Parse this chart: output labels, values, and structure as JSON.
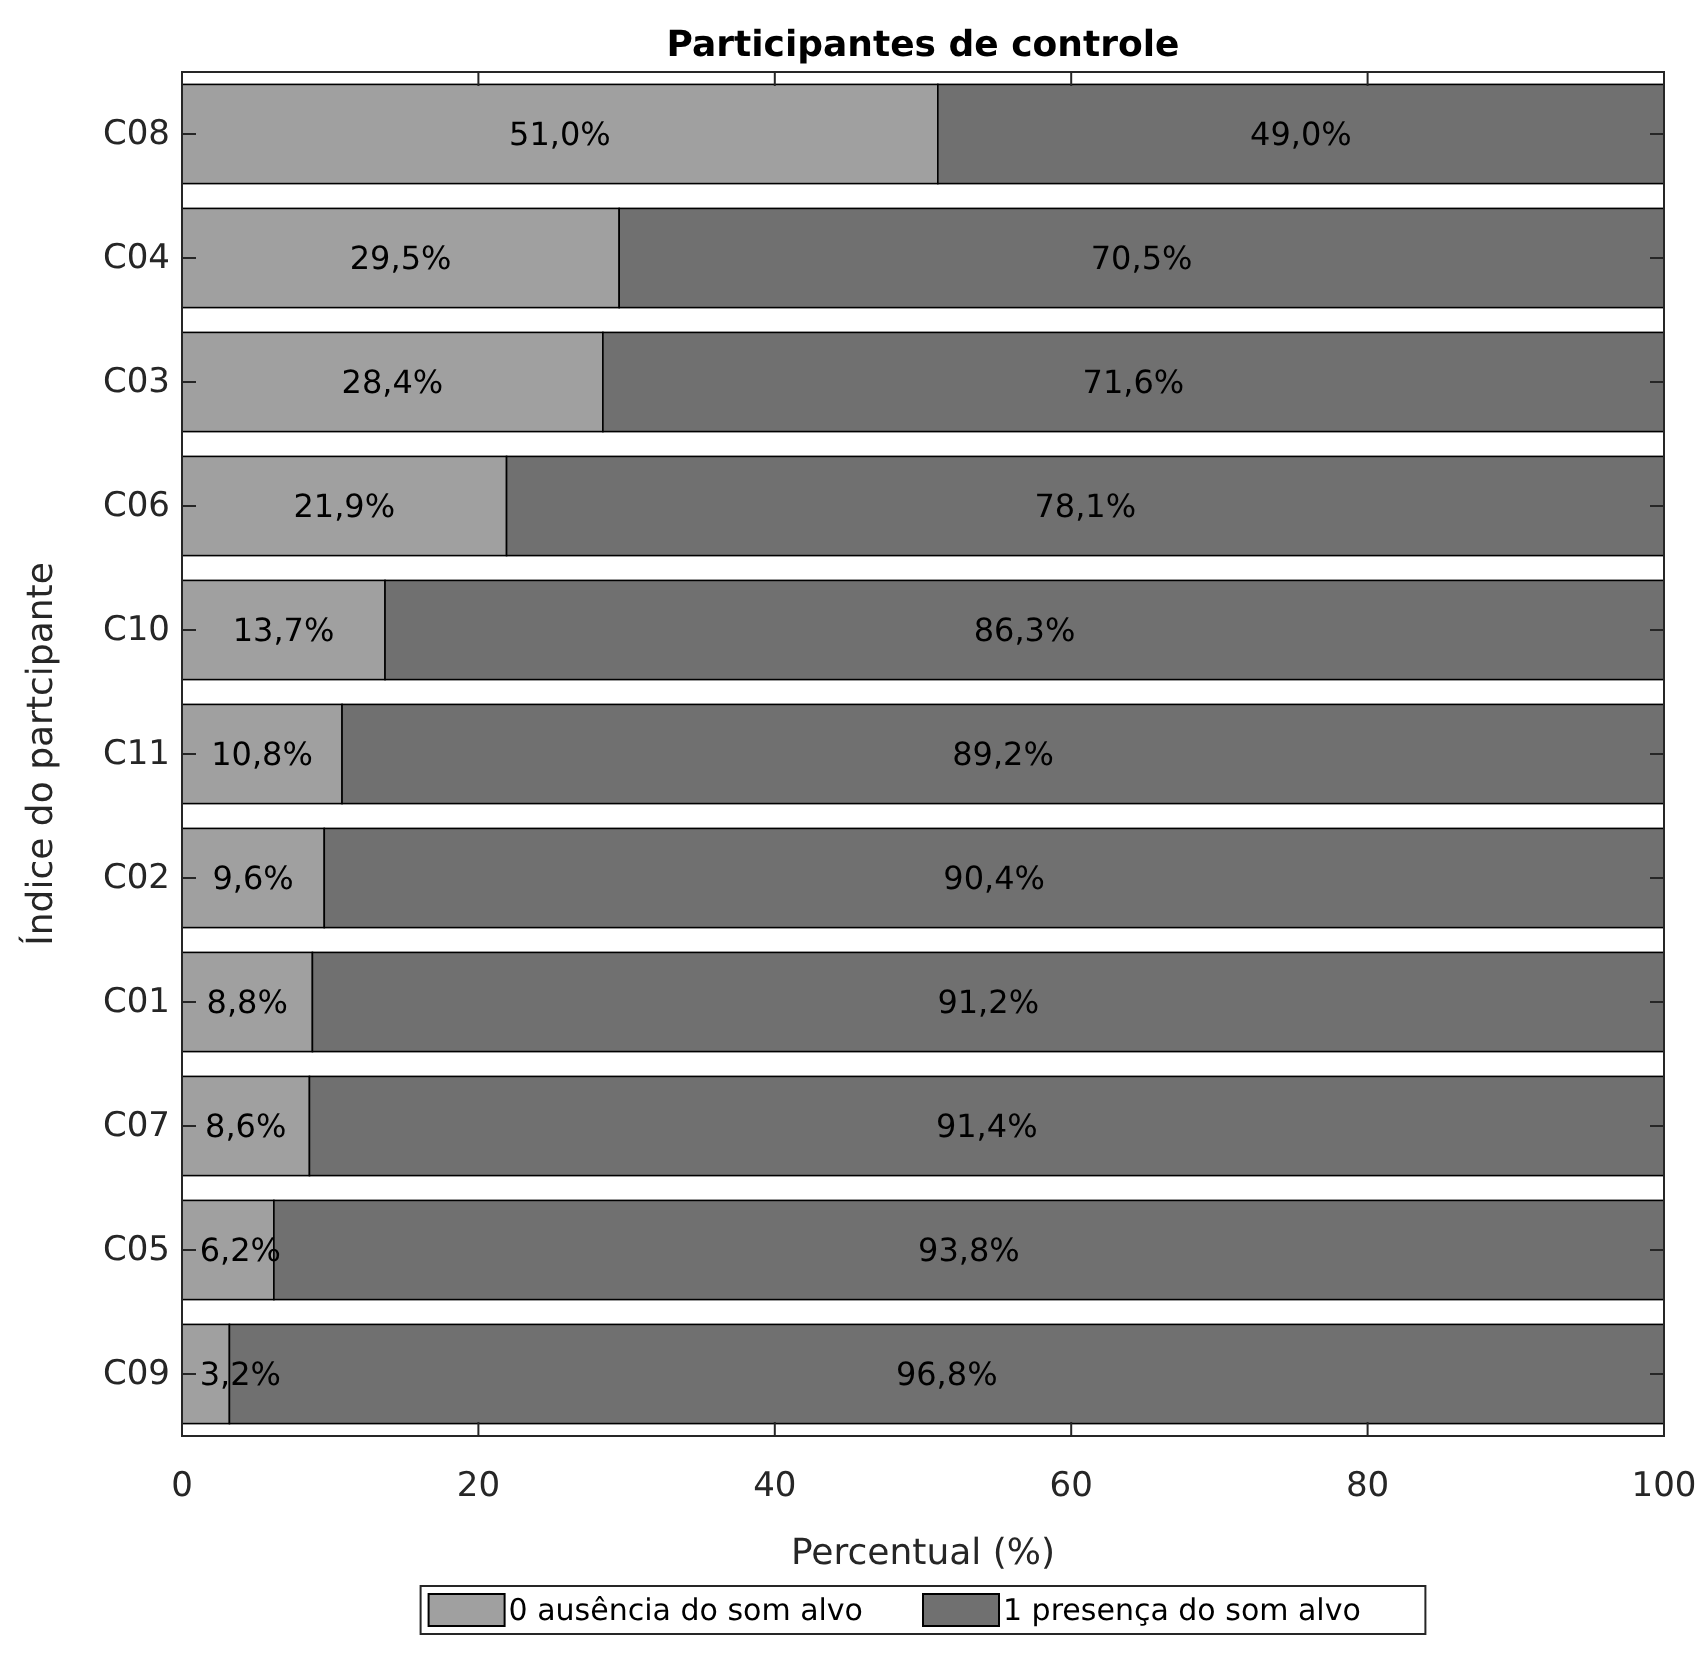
{
  "chart_data": {
    "type": "bar",
    "orientation": "horizontal",
    "stacked": true,
    "title": "Participantes de controle",
    "xlabel": "Percentual (%)",
    "ylabel": "Índice do partcipante",
    "categories": [
      "C08",
      "C04",
      "C03",
      "C06",
      "C10",
      "C11",
      "C02",
      "C01",
      "C07",
      "C05",
      "C09"
    ],
    "series": [
      {
        "name": "0 ausência do som alvo",
        "color": "#a0a0a0",
        "values": [
          51.0,
          29.5,
          28.4,
          21.9,
          13.7,
          10.8,
          9.6,
          8.8,
          8.6,
          6.2,
          3.2
        ],
        "value_labels": [
          "51,0%",
          "29,5%",
          "28,4%",
          "21,9%",
          "13,7%",
          "10,8%",
          "9,6%",
          "8,8%",
          "8,6%",
          "6,2%",
          "3,2%"
        ]
      },
      {
        "name": "1 presença do som alvo",
        "color": "#707070",
        "values": [
          49.0,
          70.5,
          71.6,
          78.1,
          86.3,
          89.2,
          90.4,
          91.2,
          91.4,
          93.8,
          96.8
        ],
        "value_labels": [
          "49,0%",
          "70,5%",
          "71,6%",
          "78,1%",
          "86,3%",
          "89,2%",
          "90,4%",
          "91,2%",
          "91,4%",
          "93,8%",
          "96,8%"
        ]
      }
    ],
    "xlim": [
      0,
      100
    ],
    "xticks": [
      0,
      20,
      40,
      60,
      80,
      100
    ],
    "legend": "bottom",
    "grid": false
  }
}
